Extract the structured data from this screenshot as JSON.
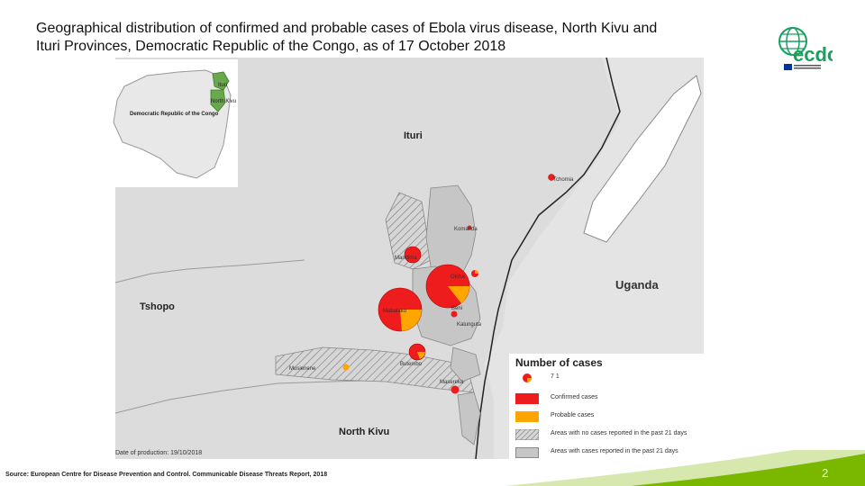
{
  "title_line1": "Geographical distribution of confirmed and probable cases of Ebola virus disease, North Kivu and",
  "title_line2": "Ituri Provinces, Democratic Republic of the Congo, as of 17 October 2018",
  "logo_text": "ecdc",
  "inset": {
    "country_label": "Democratic Republic of the Congo",
    "province_ituri": "Ituri",
    "province_north_kivu": "North Kivu"
  },
  "regions": {
    "ituri": "Ituri",
    "uganda": "Uganda",
    "tshopo": "Tshopo",
    "north_kivu": "North Kivu"
  },
  "places": {
    "tchomia": "Tchomia",
    "komanda": "Komanda",
    "mandima": "Mandima",
    "oicha": "Oicha",
    "mabalako": "Mabalako",
    "beni": "Beni",
    "kalunguta": "Kalunguta",
    "butembo": "Butembo",
    "musienene": "Musienene",
    "masereka": "Masereka"
  },
  "legend": {
    "title": "Number of cases",
    "size_example": "7 1",
    "confirmed": "Confirmed cases",
    "probable": "Probable cases",
    "no_recent": "Areas with no cases reported in the past 21 days",
    "recent": "Areas with cases reported in the past 21 days"
  },
  "colors": {
    "confirmed": "#ee1c1c",
    "probable": "#ffa500",
    "recent_area": "#c6c6c6",
    "background_land": "#dcdcdc",
    "lake": "#ffffff",
    "footer_green": "#7ab800"
  },
  "date_of_production": "Date of production: 19/10/2018",
  "source": "Source: European Centre for Disease Prevention and Control. Communicable Disease Threats Report, 2018",
  "page_number": "2"
}
